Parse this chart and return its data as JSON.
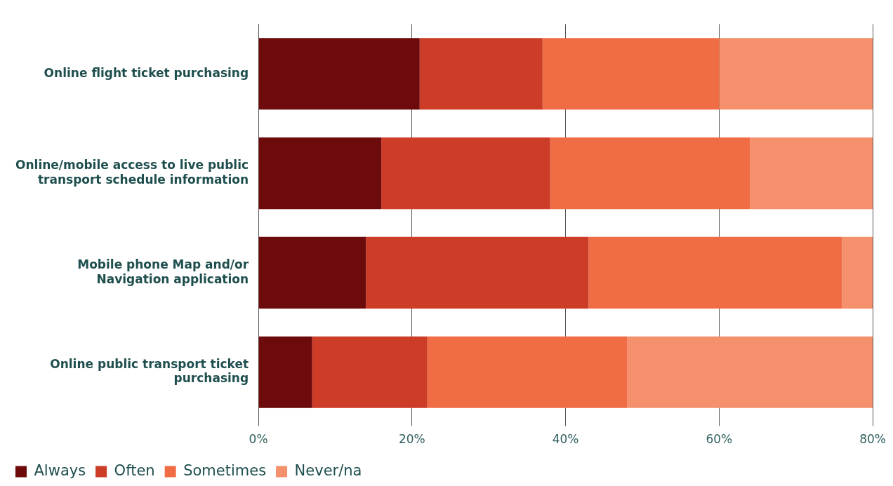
{
  "chart_data": {
    "type": "bar",
    "orientation": "horizontal",
    "stacked": true,
    "categories": [
      "Online flight ticket purchasing",
      "Online/mobile access to live public transport schedule information",
      "Mobile phone Map and/or Navigation application",
      "Online public transport ticket purchasing"
    ],
    "series": [
      {
        "name": "Always",
        "color": "#6d0a0b",
        "values": [
          21,
          16,
          14,
          7
        ]
      },
      {
        "name": "Often",
        "color": "#cc3c27",
        "values": [
          16,
          22,
          29,
          15
        ]
      },
      {
        "name": "Sometimes",
        "color": "#f06c45",
        "values": [
          23,
          26,
          33,
          26
        ]
      },
      {
        "name": "Never/na",
        "color": "#f4906b",
        "values": [
          20,
          16,
          4,
          32
        ]
      }
    ],
    "xlim": [
      0,
      80
    ],
    "xticks": [
      {
        "value": 0,
        "label": "0%"
      },
      {
        "value": 20,
        "label": "20%"
      },
      {
        "value": 40,
        "label": "40%"
      },
      {
        "value": 60,
        "label": "60%"
      },
      {
        "value": 80,
        "label": "80%"
      }
    ],
    "grid": "x",
    "legend": "bottom left"
  }
}
